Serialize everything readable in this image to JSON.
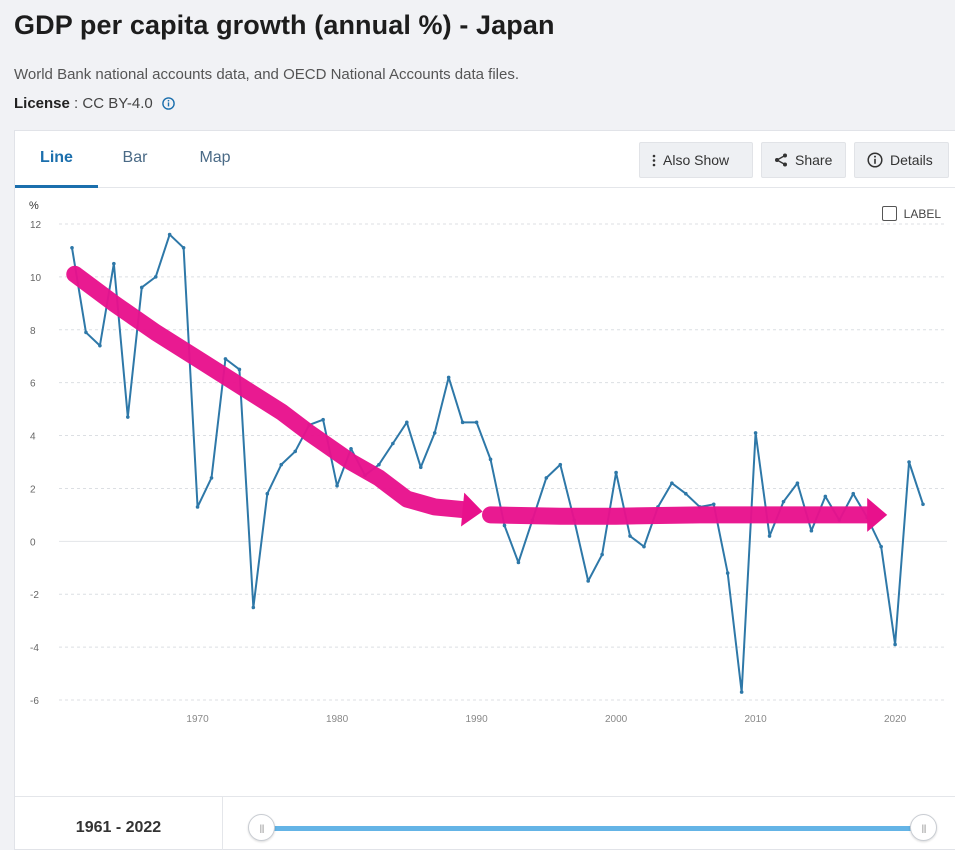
{
  "page": {
    "title": "GDP per capita growth (annual %) - Japan",
    "source": "World Bank national accounts data, and OECD National Accounts data files.",
    "license_label": "License",
    "license_sep": " : ",
    "license_value": "CC BY-4.0",
    "info_icon": "info-circle-icon"
  },
  "tabs": [
    {
      "label": "Line",
      "active": true
    },
    {
      "label": "Bar",
      "active": false
    },
    {
      "label": "Map",
      "active": false
    }
  ],
  "toolbar": {
    "also_show": {
      "label": "Also Show",
      "icon": "vertical-ellipsis-icon"
    },
    "share": {
      "label": "Share",
      "icon": "share-icon"
    },
    "details": {
      "label": "Details",
      "icon": "info-circle-icon"
    }
  },
  "label_toggle": {
    "label": "LABEL",
    "checked": false
  },
  "range": {
    "start": "1961",
    "sep": " - ",
    "end": "2022",
    "handle_glyph": "|||"
  },
  "colors": {
    "line": "#2e78a8",
    "annotation": "#e8118c",
    "grid": "#dcdfe3",
    "slider": "#64b4e6"
  },
  "chart_data": {
    "type": "line",
    "ylabel": "%",
    "ylim": [
      -6,
      12
    ],
    "yticks": [
      -6,
      -4,
      -2,
      0,
      2,
      4,
      6,
      8,
      10,
      12
    ],
    "xlim": [
      1961,
      2022
    ],
    "xticks": [
      1970,
      1980,
      1990,
      2000,
      2010,
      2020
    ],
    "grid": true,
    "series": [
      {
        "x": [
          1961,
          1962,
          1963,
          1964,
          1965,
          1966,
          1967,
          1968,
          1969,
          1970,
          1971,
          1972,
          1973,
          1974,
          1975,
          1976,
          1977,
          1978,
          1979,
          1980,
          1981,
          1982,
          1983,
          1984,
          1985,
          1986,
          1987,
          1988,
          1989,
          1990,
          1991,
          1992,
          1993,
          1994,
          1995,
          1996,
          1997,
          1998,
          1999,
          2000,
          2001,
          2002,
          2003,
          2004,
          2005,
          2006,
          2007,
          2008,
          2009,
          2010,
          2011,
          2012,
          2013,
          2014,
          2015,
          2016,
          2017,
          2018,
          2019,
          2020,
          2021,
          2022
        ],
        "y": [
          11.1,
          7.9,
          7.4,
          10.5,
          4.7,
          9.6,
          10.0,
          11.6,
          11.1,
          1.3,
          2.4,
          6.9,
          6.5,
          -2.5,
          1.8,
          2.9,
          3.4,
          4.4,
          4.6,
          2.1,
          3.5,
          2.5,
          2.9,
          3.7,
          4.5,
          2.8,
          4.1,
          6.2,
          4.5,
          4.5,
          3.1,
          0.6,
          -0.8,
          0.8,
          2.4,
          2.9,
          0.8,
          -1.5,
          -0.5,
          2.6,
          0.2,
          -0.2,
          1.3,
          2.2,
          1.8,
          1.3,
          1.4,
          -1.2,
          -5.7,
          4.1,
          0.2,
          1.5,
          2.2,
          0.4,
          1.7,
          0.8,
          1.8,
          0.9,
          -0.2,
          -3.9,
          3.0,
          1.4
        ]
      }
    ],
    "annotations": [
      {
        "type": "hand-drawn-arrow",
        "points": [
          [
            1961.2,
            10.1
          ],
          [
            1964,
            9.0
          ],
          [
            1967,
            7.9
          ],
          [
            1970,
            6.9
          ],
          [
            1973,
            5.9
          ],
          [
            1976,
            4.9
          ],
          [
            1978,
            4.1
          ],
          [
            1981,
            3.0
          ],
          [
            1983,
            2.4
          ],
          [
            1985,
            1.6
          ],
          [
            1987,
            1.3
          ],
          [
            1989,
            1.2
          ]
        ]
      },
      {
        "type": "hand-drawn-arrow",
        "points": [
          [
            1991,
            1.0
          ],
          [
            1996,
            0.95
          ],
          [
            2000,
            0.95
          ],
          [
            2006,
            1.0
          ],
          [
            2012,
            1.0
          ],
          [
            2015,
            1.0
          ],
          [
            2018,
            1.0
          ]
        ]
      }
    ]
  }
}
